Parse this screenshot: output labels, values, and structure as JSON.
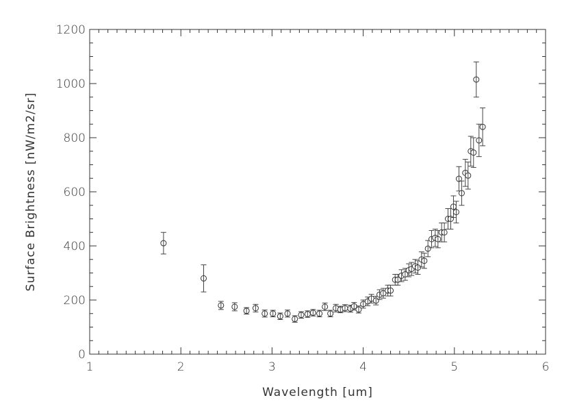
{
  "chart_data": {
    "type": "scatter",
    "title": "",
    "xlabel": "Wavelength [um]",
    "ylabel": "Surface Brightness [nW/m2/sr]",
    "xlim": [
      1,
      6
    ],
    "ylim": [
      0,
      1200
    ],
    "xticks": [
      "1",
      "2",
      "3",
      "4",
      "5",
      "6"
    ],
    "yticks": [
      "0",
      "200",
      "400",
      "600",
      "800",
      "1000",
      "1200"
    ],
    "grid": false,
    "marker": "open-circle",
    "color": "#333333",
    "x": [
      1.81,
      2.25,
      2.44,
      2.59,
      2.72,
      2.82,
      2.92,
      3.01,
      3.09,
      3.17,
      3.25,
      3.32,
      3.39,
      3.45,
      3.52,
      3.58,
      3.64,
      3.7,
      3.75,
      3.8,
      3.86,
      3.9,
      3.95,
      4.0,
      4.05,
      4.09,
      4.14,
      4.18,
      4.22,
      4.27,
      4.3,
      4.35,
      4.38,
      4.42,
      4.46,
      4.5,
      4.53,
      4.57,
      4.6,
      4.64,
      4.67,
      4.71,
      4.75,
      4.79,
      4.82,
      4.86,
      4.89,
      4.93,
      4.96,
      4.99,
      5.02,
      5.05,
      5.08,
      5.12,
      5.15,
      5.18,
      5.21,
      5.24,
      5.27,
      5.31
    ],
    "y": [
      410,
      280,
      180,
      175,
      160,
      170,
      150,
      150,
      140,
      150,
      130,
      145,
      148,
      153,
      150,
      175,
      150,
      170,
      165,
      170,
      168,
      177,
      165,
      185,
      195,
      205,
      198,
      220,
      225,
      235,
      235,
      275,
      275,
      290,
      295,
      310,
      315,
      325,
      320,
      350,
      345,
      390,
      425,
      430,
      425,
      450,
      450,
      500,
      500,
      545,
      525,
      648,
      595,
      670,
      660,
      750,
      745,
      1015,
      790,
      840
    ],
    "yerr": [
      40,
      50,
      15,
      15,
      12,
      14,
      13,
      12,
      12,
      13,
      12,
      12,
      12,
      12,
      12,
      14,
      12,
      14,
      12,
      13,
      13,
      14,
      13,
      15,
      16,
      16,
      16,
      18,
      18,
      20,
      20,
      20,
      20,
      22,
      22,
      24,
      24,
      25,
      25,
      28,
      28,
      30,
      32,
      32,
      32,
      35,
      35,
      38,
      38,
      40,
      40,
      45,
      45,
      50,
      50,
      55,
      55,
      65,
      60,
      70
    ]
  }
}
